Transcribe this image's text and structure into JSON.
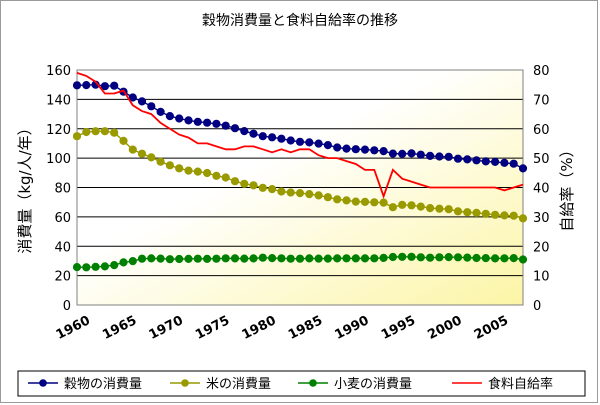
{
  "chart_data": {
    "type": "line",
    "title": "穀物消費量と食料自給率の推移",
    "ylabel": "消費量（kg/人/年）",
    "y2label": "自給率（%）",
    "ylim": [
      0,
      160
    ],
    "y2lim": [
      0,
      80
    ],
    "yticks": [
      "0",
      "20",
      "40",
      "60",
      "80",
      "100",
      "120",
      "140",
      "160"
    ],
    "y2ticks": [
      "0",
      "10",
      "20",
      "30",
      "40",
      "50",
      "60",
      "70",
      "80"
    ],
    "xlim": [
      1960,
      2008
    ],
    "xticks": [
      "1960",
      "1965",
      "1970",
      "1975",
      "1980",
      "1985",
      "1990",
      "1995",
      "2000",
      "2005"
    ],
    "grid": "horizontal",
    "legend_position": "bottom",
    "x": [
      1960,
      1961,
      1962,
      1963,
      1964,
      1965,
      1966,
      1967,
      1968,
      1969,
      1970,
      1971,
      1972,
      1973,
      1974,
      1975,
      1976,
      1977,
      1978,
      1979,
      1980,
      1981,
      1982,
      1983,
      1984,
      1985,
      1986,
      1987,
      1988,
      1989,
      1990,
      1991,
      1992,
      1993,
      1994,
      1995,
      1996,
      1997,
      1998,
      1999,
      2000,
      2001,
      2002,
      2003,
      2004,
      2005,
      2006,
      2007,
      2008
    ],
    "series": [
      {
        "name": "穀物の消費量",
        "axis": "left",
        "color": "#000080",
        "marker": "circle",
        "values": [
          149.6,
          149.7,
          150,
          149,
          149.3,
          145.2,
          141.3,
          138.6,
          135.3,
          131.5,
          128.6,
          127,
          125.7,
          124.7,
          124.1,
          123.4,
          122.1,
          120.4,
          118.4,
          116.6,
          114.9,
          114.2,
          113.2,
          112,
          111.1,
          110.7,
          109.9,
          108.9,
          107.2,
          106.5,
          106.1,
          105.8,
          105.3,
          104.8,
          103.1,
          102.9,
          103.2,
          102.3,
          101.5,
          101.1,
          100.9,
          99.6,
          99.1,
          98.5,
          97.8,
          97.4,
          96.8,
          96.2,
          93
        ]
      },
      {
        "name": "米の消費量",
        "axis": "left",
        "color": "#999900",
        "marker": "circle",
        "values": [
          114.9,
          117.8,
          118.3,
          118.3,
          117.3,
          111.7,
          105.8,
          103,
          100.5,
          97.6,
          95.1,
          93.1,
          91.5,
          90.8,
          89.9,
          88,
          86.8,
          84.3,
          82.5,
          81.5,
          79.8,
          78.9,
          77.3,
          76.6,
          76.2,
          75.5,
          74.6,
          73.4,
          72,
          71.2,
          70.4,
          70.2,
          69.9,
          69.7,
          66.6,
          68.2,
          67.9,
          67,
          66,
          65.6,
          65.2,
          63.8,
          63.2,
          62.7,
          62.1,
          61.4,
          61,
          60.8,
          59
        ]
      },
      {
        "name": "小麦の消費量",
        "axis": "left",
        "color": "#008000",
        "marker": "circle",
        "values": [
          25.8,
          25.7,
          26,
          26.3,
          27.2,
          29,
          29.9,
          31.5,
          31.7,
          31.6,
          31.2,
          31.3,
          31.4,
          31.5,
          31.4,
          31.5,
          31.8,
          31.7,
          31.6,
          31.7,
          32.2,
          31.9,
          31.8,
          31.5,
          31.5,
          31.7,
          31.6,
          31.6,
          31.7,
          31.8,
          31.7,
          31.7,
          31.8,
          32.1,
          32.7,
          32.8,
          32.8,
          32.5,
          32.2,
          32.5,
          32.6,
          32.5,
          32.3,
          32,
          31.9,
          31.7,
          31.8,
          31.9,
          31
        ]
      },
      {
        "name": "食料自給率",
        "axis": "right",
        "color": "#ff0000",
        "marker": "none",
        "values": [
          79,
          78,
          76,
          72,
          72,
          73,
          68,
          66,
          65,
          62,
          60,
          58,
          57,
          55,
          55,
          54,
          53,
          53,
          54,
          54,
          53,
          52,
          53,
          52,
          53,
          53,
          51,
          50,
          50,
          49,
          48,
          46,
          46,
          37,
          46,
          43,
          42,
          41,
          40,
          40,
          40,
          40,
          40,
          40,
          40,
          40,
          39,
          40,
          41
        ]
      }
    ]
  }
}
